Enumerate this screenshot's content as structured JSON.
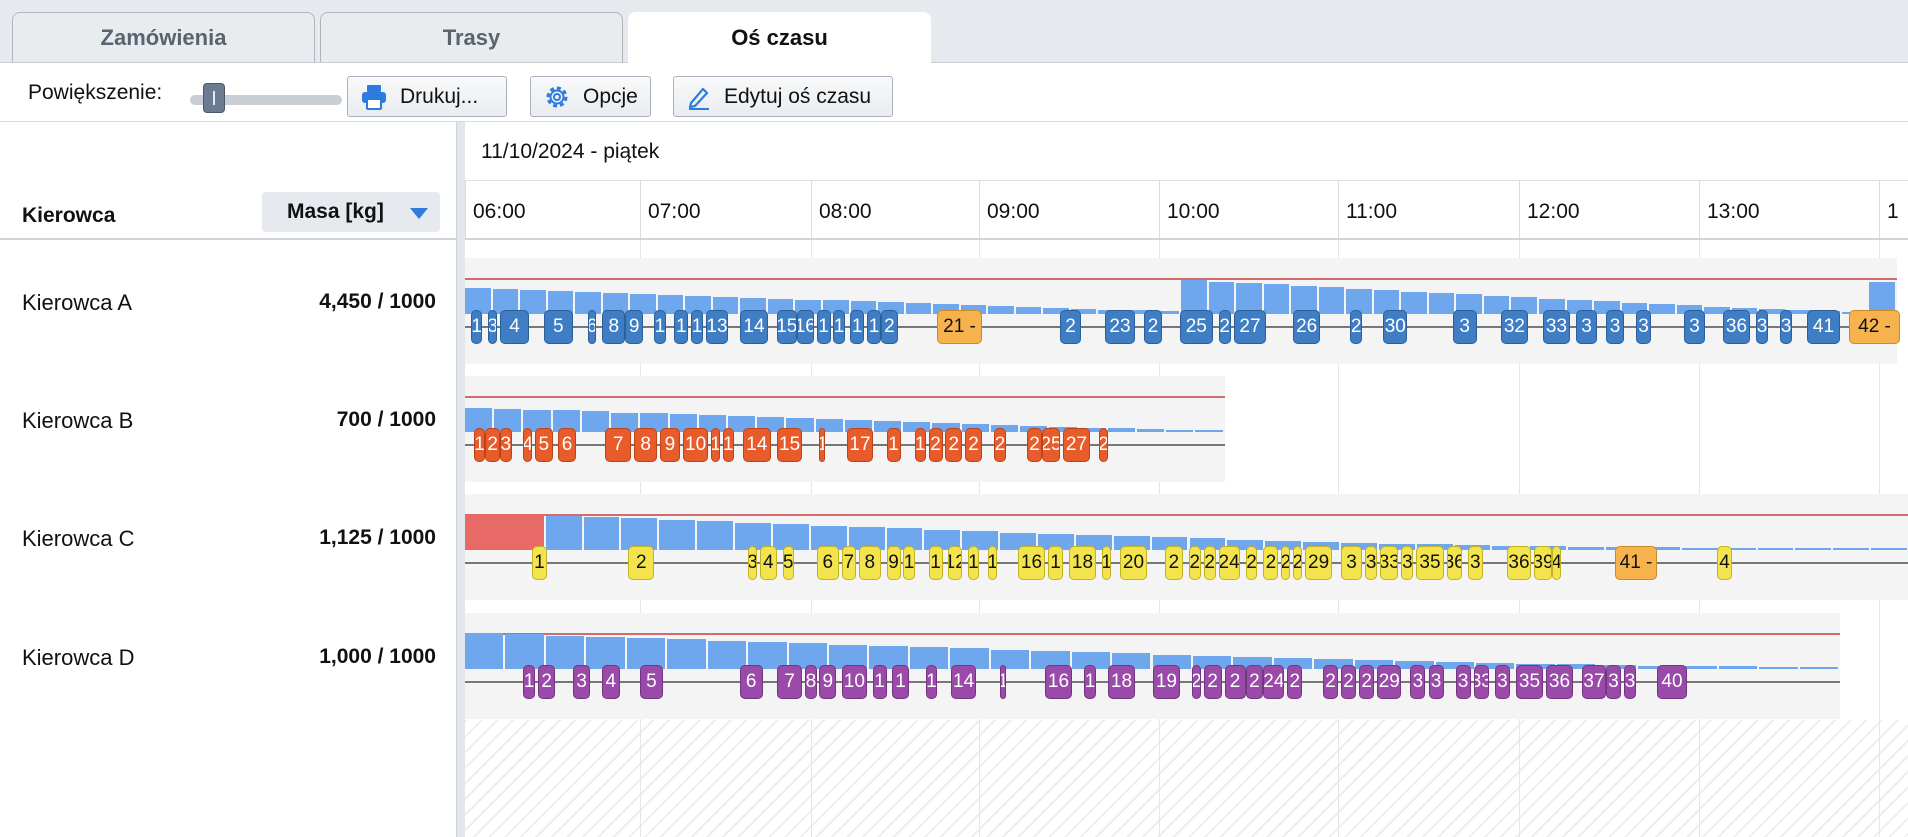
{
  "tabs": [
    {
      "label": "Zamówienia",
      "active": false
    },
    {
      "label": "Trasy",
      "active": false
    },
    {
      "label": "Oś czasu",
      "active": true
    }
  ],
  "toolbar": {
    "zoom_label": "Powiększenie:",
    "zoom_level": 0.05,
    "print_label": "Drukuj...",
    "options_label": "Opcje",
    "edit_label": "Edytuj oś czasu"
  },
  "columns": {
    "driver": "Kierowca",
    "sort_select": "Masa [kg]"
  },
  "timeline": {
    "date": "11/10/2024 - piątek",
    "hours": [
      "06:00",
      "07:00",
      "08:00",
      "09:00",
      "10:00",
      "11:00",
      "12:00",
      "13:00",
      "1"
    ]
  },
  "drivers": [
    {
      "name": "Kierowca A",
      "mass": "4,450 / 1000",
      "color": "blue",
      "stops": [
        {
          "label": "1",
          "start": "06:02",
          "end": "06:06"
        },
        {
          "label": "3",
          "start": "06:08",
          "end": "06:11"
        },
        {
          "label": "4",
          "start": "06:12",
          "end": "06:22"
        },
        {
          "label": "5",
          "start": "06:27",
          "end": "06:37"
        },
        {
          "label": "6",
          "start": "06:42",
          "end": "06:45"
        },
        {
          "label": "8",
          "start": "06:47",
          "end": "06:55"
        },
        {
          "label": "9",
          "start": "06:55",
          "end": "07:01"
        },
        {
          "label": "1",
          "start": "07:05",
          "end": "07:09"
        },
        {
          "label": "1",
          "start": "07:12",
          "end": "07:17"
        },
        {
          "label": "1",
          "start": "07:18",
          "end": "07:22"
        },
        {
          "label": "13",
          "start": "07:23",
          "end": "07:31"
        },
        {
          "label": "14",
          "start": "07:35",
          "end": "07:45"
        },
        {
          "label": "15",
          "start": "07:48",
          "end": "07:55"
        },
        {
          "label": "16",
          "start": "07:55",
          "end": "08:01"
        },
        {
          "label": "1",
          "start": "08:02",
          "end": "08:07"
        },
        {
          "label": "1",
          "start": "08:08",
          "end": "08:12"
        },
        {
          "label": "1",
          "start": "08:14",
          "end": "08:19"
        },
        {
          "label": "1",
          "start": "08:20",
          "end": "08:25"
        },
        {
          "label": "2",
          "start": "08:25",
          "end": "08:31"
        },
        {
          "label": "21 -",
          "start": "08:45",
          "end": "09:01",
          "special": true
        },
        {
          "label": "2",
          "start": "09:27",
          "end": "09:34"
        },
        {
          "label": "23",
          "start": "09:42",
          "end": "09:52"
        },
        {
          "label": "2",
          "start": "09:55",
          "end": "10:01"
        },
        {
          "label": "25",
          "start": "10:07",
          "end": "10:18"
        },
        {
          "label": "2",
          "start": "10:20",
          "end": "10:24"
        },
        {
          "label": "27",
          "start": "10:25",
          "end": "10:36"
        },
        {
          "label": "26",
          "start": "10:45",
          "end": "10:54"
        },
        {
          "label": "2",
          "start": "11:04",
          "end": "11:08"
        },
        {
          "label": "30",
          "start": "11:15",
          "end": "11:23"
        },
        {
          "label": "3",
          "start": "11:38",
          "end": "11:46"
        },
        {
          "label": "32",
          "start": "11:54",
          "end": "12:03"
        },
        {
          "label": "33",
          "start": "12:08",
          "end": "12:17"
        },
        {
          "label": "3",
          "start": "12:19",
          "end": "12:26"
        },
        {
          "label": "3",
          "start": "12:29",
          "end": "12:35"
        },
        {
          "label": "3",
          "start": "12:39",
          "end": "12:44"
        },
        {
          "label": "3",
          "start": "12:55",
          "end": "13:02"
        },
        {
          "label": "36",
          "start": "13:08",
          "end": "13:17"
        },
        {
          "label": "3",
          "start": "13:19",
          "end": "13:23"
        },
        {
          "label": "3",
          "start": "13:27",
          "end": "13:31"
        },
        {
          "label": "41",
          "start": "13:36",
          "end": "13:47"
        },
        {
          "label": "42 -",
          "start": "13:50",
          "end": "14:07",
          "special": true
        }
      ],
      "loads": [
        0.72,
        0.7,
        0.67,
        0.64,
        0.61,
        0.58,
        0.55,
        0.52,
        0.5,
        0.48,
        0.45,
        0.43,
        0.4,
        0.38,
        0.35,
        0.33,
        0.3,
        0.28,
        0.25,
        0.22,
        0.2,
        0.17,
        0.15,
        0.12,
        0.1,
        0.08,
        0.95,
        0.9,
        0.86,
        0.82,
        0.78,
        0.74,
        0.7,
        0.66,
        0.62,
        0.58,
        0.55,
        0.51,
        0.47,
        0.43,
        0.39,
        0.35,
        0.31,
        0.28,
        0.24,
        0.2,
        0.17,
        0.13,
        0.1,
        0.07,
        0.04,
        0.9
      ],
      "load_end": "14:06",
      "capacity_end": "14:06",
      "row_end": "14:06"
    },
    {
      "name": "Kierowca B",
      "mass": "700 / 1000",
      "color": "red",
      "stops": [
        {
          "label": "1",
          "start": "06:03",
          "end": "06:07"
        },
        {
          "label": "2",
          "start": "06:07",
          "end": "06:12"
        },
        {
          "label": "3",
          "start": "06:12",
          "end": "06:16"
        },
        {
          "label": "4",
          "start": "06:20",
          "end": "06:23"
        },
        {
          "label": "5",
          "start": "06:24",
          "end": "06:30"
        },
        {
          "label": "6",
          "start": "06:32",
          "end": "06:38"
        },
        {
          "label": "7",
          "start": "06:48",
          "end": "06:57"
        },
        {
          "label": "8",
          "start": "06:58",
          "end": "07:06"
        },
        {
          "label": "9",
          "start": "07:07",
          "end": "07:14"
        },
        {
          "label": "10",
          "start": "07:15",
          "end": "07:24"
        },
        {
          "label": "1",
          "start": "07:25",
          "end": "07:28"
        },
        {
          "label": "1",
          "start": "07:29",
          "end": "07:33"
        },
        {
          "label": "14",
          "start": "07:36",
          "end": "07:46"
        },
        {
          "label": "15",
          "start": "07:48",
          "end": "07:57"
        },
        {
          "label": "1",
          "start": "08:03",
          "end": "08:05"
        },
        {
          "label": "17",
          "start": "08:13",
          "end": "08:22"
        },
        {
          "label": "1",
          "start": "08:27",
          "end": "08:32"
        },
        {
          "label": "1",
          "start": "08:37",
          "end": "08:41"
        },
        {
          "label": "2",
          "start": "08:42",
          "end": "08:47"
        },
        {
          "label": "2",
          "start": "08:48",
          "end": "08:54"
        },
        {
          "label": "2",
          "start": "08:55",
          "end": "09:01"
        },
        {
          "label": "2",
          "start": "09:05",
          "end": "09:09"
        },
        {
          "label": "2",
          "start": "09:16",
          "end": "09:21"
        },
        {
          "label": "25",
          "start": "09:21",
          "end": "09:27"
        },
        {
          "label": "27",
          "start": "09:28",
          "end": "09:37"
        },
        {
          "label": "2",
          "start": "09:40",
          "end": "09:43"
        }
      ],
      "loads": [
        0.68,
        0.65,
        0.62,
        0.6,
        0.57,
        0.54,
        0.52,
        0.49,
        0.46,
        0.44,
        0.41,
        0.38,
        0.36,
        0.33,
        0.31,
        0.28,
        0.25,
        0.23,
        0.2,
        0.17,
        0.15,
        0.12,
        0.1,
        0.07,
        0.05,
        0.03
      ],
      "load_end": "10:22",
      "capacity_end": "10:22",
      "row_end": "10:22"
    },
    {
      "name": "Kierowca C",
      "mass": "1,125 / 1000",
      "color": "yellow",
      "stops": [
        {
          "label": "1",
          "start": "06:23",
          "end": "06:28"
        },
        {
          "label": "2",
          "start": "06:56",
          "end": "07:05"
        },
        {
          "label": "3",
          "start": "07:38",
          "end": "07:41"
        },
        {
          "label": "4",
          "start": "07:42",
          "end": "07:48"
        },
        {
          "label": "5",
          "start": "07:50",
          "end": "07:54"
        },
        {
          "label": "6",
          "start": "08:02",
          "end": "08:10"
        },
        {
          "label": "7",
          "start": "08:11",
          "end": "08:16"
        },
        {
          "label": "8",
          "start": "08:17",
          "end": "08:25"
        },
        {
          "label": "9",
          "start": "08:27",
          "end": "08:32"
        },
        {
          "label": "1",
          "start": "08:33",
          "end": "08:37"
        },
        {
          "label": "1",
          "start": "08:42",
          "end": "08:47"
        },
        {
          "label": "12",
          "start": "08:49",
          "end": "08:54"
        },
        {
          "label": "1",
          "start": "08:56",
          "end": "09:00"
        },
        {
          "label": "1",
          "start": "09:03",
          "end": "09:06"
        },
        {
          "label": "16",
          "start": "09:13",
          "end": "09:22"
        },
        {
          "label": "1",
          "start": "09:23",
          "end": "09:28"
        },
        {
          "label": "18",
          "start": "09:30",
          "end": "09:39"
        },
        {
          "label": "1",
          "start": "09:41",
          "end": "09:44"
        },
        {
          "label": "20",
          "start": "09:47",
          "end": "09:56"
        },
        {
          "label": "2",
          "start": "10:02",
          "end": "10:08"
        },
        {
          "label": "2",
          "start": "10:10",
          "end": "10:14"
        },
        {
          "label": "2",
          "start": "10:15",
          "end": "10:19"
        },
        {
          "label": "24",
          "start": "10:20",
          "end": "10:27"
        },
        {
          "label": "2",
          "start": "10:29",
          "end": "10:33"
        },
        {
          "label": "2",
          "start": "10:35",
          "end": "10:40"
        },
        {
          "label": "2",
          "start": "10:41",
          "end": "10:44"
        },
        {
          "label": "2",
          "start": "10:45",
          "end": "10:48"
        },
        {
          "label": "29",
          "start": "10:49",
          "end": "10:58"
        },
        {
          "label": "3",
          "start": "11:01",
          "end": "11:08"
        },
        {
          "label": "3",
          "start": "11:09",
          "end": "11:13"
        },
        {
          "label": "33",
          "start": "11:14",
          "end": "11:20"
        },
        {
          "label": "3",
          "start": "11:21",
          "end": "11:25"
        },
        {
          "label": "35",
          "start": "11:26",
          "end": "11:35"
        },
        {
          "label": "36",
          "start": "11:36",
          "end": "11:41"
        },
        {
          "label": "3",
          "start": "11:43",
          "end": "11:48"
        },
        {
          "label": "36",
          "start": "11:56",
          "end": "12:04"
        },
        {
          "label": "39",
          "start": "12:05",
          "end": "12:11"
        },
        {
          "label": "4",
          "start": "12:11",
          "end": "12:14"
        },
        {
          "label": "41 -",
          "start": "12:32",
          "end": "12:46",
          "special": true
        },
        {
          "label": "4",
          "start": "13:06",
          "end": "13:11"
        }
      ],
      "overload_end": "06:27",
      "loads": [
        0.95,
        0.92,
        0.88,
        0.84,
        0.8,
        0.76,
        0.72,
        0.68,
        0.64,
        0.6,
        0.56,
        0.52,
        0.48,
        0.44,
        0.41,
        0.38,
        0.35,
        0.32,
        0.29,
        0.26,
        0.23,
        0.2,
        0.18,
        0.16,
        0.14,
        0.12,
        0.1,
        0.09,
        0.08,
        0.07,
        0.06,
        0.05,
        0.05,
        0.04,
        0.04,
        0.04
      ],
      "load_end": "14:10",
      "capacity_end": "14:10",
      "row_end": "14:10"
    },
    {
      "name": "Kierowca D",
      "mass": "1,000 / 1000",
      "color": "purple",
      "stops": [
        {
          "label": "1",
          "start": "06:20",
          "end": "06:24"
        },
        {
          "label": "2",
          "start": "06:25",
          "end": "06:31"
        },
        {
          "label": "3",
          "start": "06:37",
          "end": "06:43"
        },
        {
          "label": "4",
          "start": "06:47",
          "end": "06:53"
        },
        {
          "label": "5",
          "start": "07:00",
          "end": "07:08"
        },
        {
          "label": "6",
          "start": "07:35",
          "end": "07:43"
        },
        {
          "label": "7",
          "start": "07:48",
          "end": "07:57"
        },
        {
          "label": "8",
          "start": "07:58",
          "end": "08:02"
        },
        {
          "label": "9",
          "start": "08:03",
          "end": "08:09"
        },
        {
          "label": "10",
          "start": "08:11",
          "end": "08:20"
        },
        {
          "label": "1",
          "start": "08:22",
          "end": "08:27"
        },
        {
          "label": "1",
          "start": "08:29",
          "end": "08:35"
        },
        {
          "label": "1",
          "start": "08:41",
          "end": "08:45"
        },
        {
          "label": "14",
          "start": "08:50",
          "end": "08:59"
        },
        {
          "label": "1",
          "start": "09:07",
          "end": "09:09"
        },
        {
          "label": "16",
          "start": "09:22",
          "end": "09:31"
        },
        {
          "label": "1",
          "start": "09:35",
          "end": "09:39"
        },
        {
          "label": "18",
          "start": "09:43",
          "end": "09:52"
        },
        {
          "label": "19",
          "start": "09:58",
          "end": "10:07"
        },
        {
          "label": "2",
          "start": "10:11",
          "end": "10:14"
        },
        {
          "label": "2",
          "start": "10:15",
          "end": "10:21"
        },
        {
          "label": "2",
          "start": "10:22",
          "end": "10:29"
        },
        {
          "label": "2",
          "start": "10:29",
          "end": "10:35"
        },
        {
          "label": "24",
          "start": "10:35",
          "end": "10:42"
        },
        {
          "label": "2",
          "start": "10:43",
          "end": "10:48"
        },
        {
          "label": "2",
          "start": "10:55",
          "end": "11:00"
        },
        {
          "label": "2",
          "start": "11:01",
          "end": "11:06"
        },
        {
          "label": "2",
          "start": "11:07",
          "end": "11:12"
        },
        {
          "label": "29",
          "start": "11:13",
          "end": "11:21"
        },
        {
          "label": "3",
          "start": "11:24",
          "end": "11:29"
        },
        {
          "label": "3",
          "start": "11:30",
          "end": "11:35"
        },
        {
          "label": "3",
          "start": "11:39",
          "end": "11:44"
        },
        {
          "label": "33",
          "start": "11:45",
          "end": "11:50"
        },
        {
          "label": "3",
          "start": "11:52",
          "end": "11:57"
        },
        {
          "label": "35",
          "start": "11:59",
          "end": "12:08"
        },
        {
          "label": "36",
          "start": "12:09",
          "end": "12:18"
        },
        {
          "label": "37",
          "start": "12:21",
          "end": "12:29"
        },
        {
          "label": "3",
          "start": "12:29",
          "end": "12:34"
        },
        {
          "label": "3",
          "start": "12:35",
          "end": "12:39"
        },
        {
          "label": "40",
          "start": "12:46",
          "end": "12:56"
        }
      ],
      "loads": [
        1.0,
        0.96,
        0.92,
        0.88,
        0.85,
        0.82,
        0.78,
        0.74,
        0.71,
        0.68,
        0.64,
        0.6,
        0.57,
        0.54,
        0.5,
        0.47,
        0.44,
        0.4,
        0.37,
        0.34,
        0.31,
        0.28,
        0.25,
        0.22,
        0.19,
        0.17,
        0.15,
        0.13,
        0.11,
        0.09,
        0.08,
        0.07,
        0.06,
        0.05
      ],
      "load_end": "13:47",
      "capacity_end": "13:47",
      "row_end": "13:47"
    }
  ],
  "colors": {
    "blue": "#3f7ec4",
    "red": "#e85c2c",
    "yellow": "#f3e34d",
    "purple": "#9a4aa8",
    "special": "#f6b24c",
    "load": "#6fa7ee",
    "overload": "#e86a66",
    "capacity_line": "#d26b6b"
  }
}
